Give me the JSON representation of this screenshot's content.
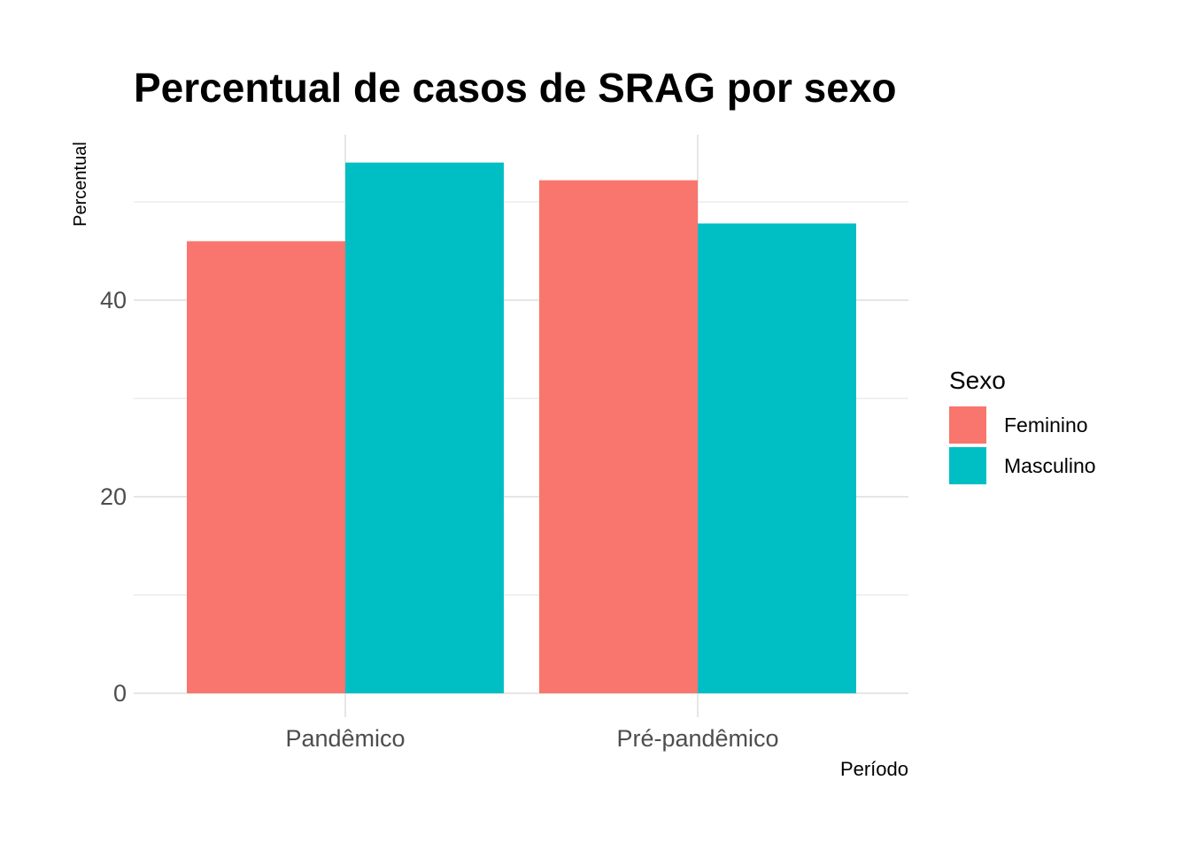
{
  "chart_data": {
    "type": "bar",
    "title": "Percentual de casos de SRAG por sexo",
    "xlabel": "Período",
    "ylabel": "Percentual",
    "categories": [
      "Pandêmico",
      "Pré-pandêmico"
    ],
    "series": [
      {
        "name": "Feminino",
        "color": "#F8766D",
        "values": [
          46,
          52.2
        ]
      },
      {
        "name": "Masculino",
        "color": "#00BFC4",
        "values": [
          54,
          47.8
        ]
      }
    ],
    "yticks": [
      0,
      20,
      40
    ],
    "ylim": [
      0,
      56.7
    ],
    "grid": true,
    "legend": {
      "title": "Sexo",
      "position": "right"
    }
  }
}
